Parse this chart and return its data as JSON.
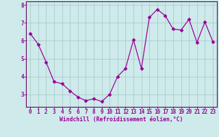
{
  "x": [
    0,
    1,
    2,
    3,
    4,
    5,
    6,
    7,
    8,
    9,
    10,
    11,
    12,
    13,
    14,
    15,
    16,
    17,
    18,
    19,
    20,
    21,
    22,
    23
  ],
  "y": [
    6.4,
    5.8,
    4.8,
    3.7,
    3.6,
    3.2,
    2.85,
    2.65,
    2.75,
    2.6,
    3.0,
    4.0,
    4.45,
    6.05,
    4.45,
    7.3,
    7.75,
    7.4,
    6.65,
    6.6,
    7.2,
    5.9,
    7.05,
    5.95
  ],
  "line_color": "#990099",
  "marker": "D",
  "marker_size": 2.5,
  "background_color": "#ceeaea",
  "grid_color": "#aacccc",
  "xlabel": "Windchill (Refroidissement éolien,°C)",
  "xlabel_color": "#990099",
  "tick_color": "#990099",
  "ylim": [
    2.3,
    8.2
  ],
  "xlim": [
    -0.5,
    23.5
  ],
  "yticks": [
    3,
    4,
    5,
    6,
    7,
    8
  ],
  "xticks": [
    0,
    1,
    2,
    3,
    4,
    5,
    6,
    7,
    8,
    9,
    10,
    11,
    12,
    13,
    14,
    15,
    16,
    17,
    18,
    19,
    20,
    21,
    22,
    23
  ],
  "spine_color": "#660066",
  "tick_fontsize": 5.5,
  "xlabel_fontsize": 5.8
}
